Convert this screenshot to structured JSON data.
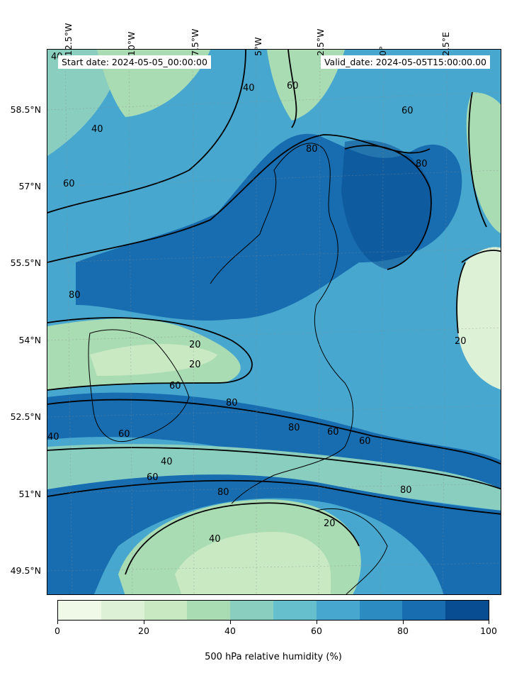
{
  "header": {
    "start_date": "Start date: 2024-05-05_00:00:00",
    "valid_date": "Valid_date: 2024-05-05T15:00:00.00"
  },
  "map": {
    "longitude_labels": [
      "12.5°W",
      "10°W",
      "7.5°W",
      "5°W",
      "2.5°W",
      "0°",
      "2.5°E"
    ],
    "latitude_labels": [
      "58.5°N",
      "57°N",
      "55.5°N",
      "54°N",
      "52.5°N",
      "51°N",
      "49.5°N"
    ],
    "contour_labels": [
      "40",
      "40",
      "40",
      "40",
      "60",
      "60",
      "60",
      "60",
      "60",
      "80",
      "80",
      "80",
      "80",
      "80",
      "20",
      "20",
      "20",
      "40",
      "60",
      "80",
      "60",
      "40",
      "20",
      "60",
      "80"
    ]
  },
  "colorbar": {
    "title": "500 hPa relative humidity (%)",
    "tick_labels": [
      "0",
      "20",
      "40",
      "60",
      "80",
      "100"
    ],
    "colors": [
      "#f0f9e8",
      "#dcf1d6",
      "#c9e9c3",
      "#aadcb4",
      "#8acec0",
      "#66bfcc",
      "#47a7cf",
      "#2c8bc0",
      "#176db0",
      "#084d92"
    ]
  }
}
